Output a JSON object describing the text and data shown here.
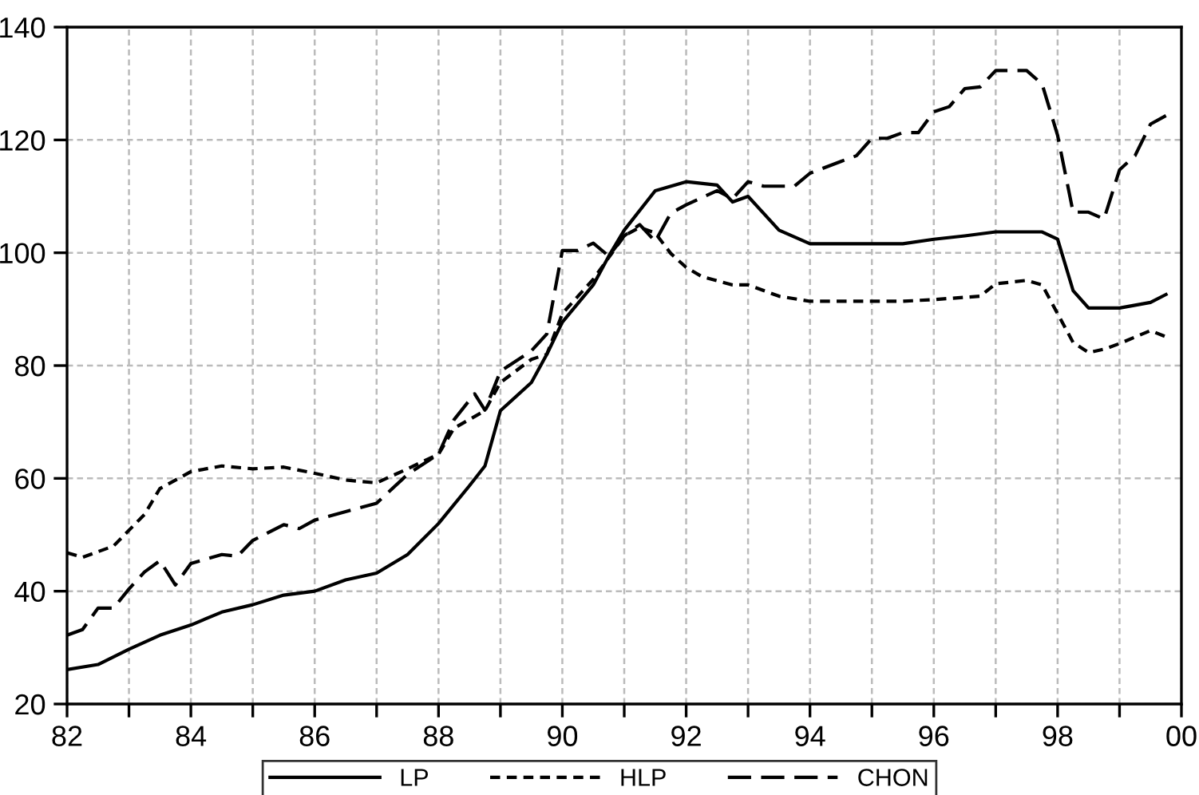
{
  "chart_data": {
    "type": "line",
    "xlim": [
      "1982",
      "2000"
    ],
    "ylim": [
      20,
      140
    ],
    "xticks": [
      {
        "value": "1982",
        "label": "82"
      },
      {
        "value": "1983",
        "label": null
      },
      {
        "value": "1984",
        "label": "84"
      },
      {
        "value": "1985",
        "label": null
      },
      {
        "value": "1986",
        "label": "86"
      },
      {
        "value": "1987",
        "label": null
      },
      {
        "value": "1988",
        "label": "88"
      },
      {
        "value": "1989",
        "label": null
      },
      {
        "value": "1990",
        "label": "90"
      },
      {
        "value": "1991",
        "label": null
      },
      {
        "value": "1992",
        "label": "92"
      },
      {
        "value": "1993",
        "label": null
      },
      {
        "value": "1994",
        "label": "94"
      },
      {
        "value": "1995",
        "label": null
      },
      {
        "value": "1996",
        "label": "96"
      },
      {
        "value": "1997",
        "label": null
      },
      {
        "value": "1998",
        "label": "98"
      },
      {
        "value": "1999",
        "label": null
      },
      {
        "value": "2000",
        "label": "00"
      }
    ],
    "yticks": [
      20,
      40,
      60,
      80,
      100,
      120,
      140
    ],
    "grid": true,
    "legend": "bottom",
    "marker": "none",
    "series": [
      {
        "name": "LP",
        "color": "#000000",
        "line_style": "solid",
        "x": [
          "1982-01",
          "1982-07",
          "1983-01",
          "1983-07",
          "1984-01",
          "1984-07",
          "1985-01",
          "1985-07",
          "1986-01",
          "1986-07",
          "1987-01",
          "1987-07",
          "1988-01",
          "1988-07",
          "1988-10",
          "1989-01",
          "1989-07",
          "1989-10",
          "1990-01",
          "1990-07",
          "1990-10",
          "1991-01",
          "1991-07",
          "1992-01",
          "1992-07",
          "1992-10",
          "1993-01",
          "1993-07",
          "1994-01",
          "1995-07",
          "1996-01",
          "1996-07",
          "1997-01",
          "1997-10",
          "1998-01",
          "1998-04",
          "1998-07",
          "1999-01",
          "1999-07",
          "1999-10"
        ],
        "values": [
          26.1,
          27,
          29.7,
          32.2,
          34,
          36.3,
          37.6,
          39.3,
          40,
          42,
          43.2,
          46.5,
          52,
          58.7,
          62.2,
          72,
          77,
          82,
          87.7,
          94.3,
          99.4,
          104,
          111,
          112.6,
          112,
          109,
          110,
          104,
          101.6,
          101.6,
          102.4,
          103,
          103.7,
          103.7,
          102.4,
          93.3,
          90.2,
          90.2,
          91.2,
          92.6
        ]
      },
      {
        "name": "HLP",
        "color": "#000000",
        "line_style": "dotted",
        "x": [
          "1982-01",
          "1982-04",
          "1982-10",
          "1983-04",
          "1983-07",
          "1984-01",
          "1984-07",
          "1985-01",
          "1985-07",
          "1986-01",
          "1986-07",
          "1987-01",
          "1987-07",
          "1988-01",
          "1988-04",
          "1988-10",
          "1989-01",
          "1989-07",
          "1989-10",
          "1990-01",
          "1990-07",
          "1991-01",
          "1991-04",
          "1991-07",
          "1991-10",
          "1992-01",
          "1992-04",
          "1992-10",
          "1993-01",
          "1993-07",
          "1994-01",
          "1995-07",
          "1996-01",
          "1996-10",
          "1997-01",
          "1997-07",
          "1997-10",
          "1998-01",
          "1998-04",
          "1998-07",
          "1998-10",
          "1999-01",
          "1999-07",
          "1999-10"
        ],
        "values": [
          46.8,
          46,
          48,
          53.6,
          58.2,
          61.2,
          62.2,
          61.7,
          62,
          60.9,
          59.7,
          59.2,
          61.7,
          64.3,
          68.9,
          72,
          77,
          81.1,
          82,
          89.2,
          95.3,
          103,
          104.5,
          103.5,
          99.9,
          97.4,
          95.8,
          94.3,
          94.3,
          92.3,
          91.4,
          91.4,
          91.7,
          92.3,
          94.5,
          95.1,
          94.3,
          89.2,
          84.1,
          82.3,
          82.9,
          83.9,
          86.2,
          85.1
        ]
      },
      {
        "name": "CHON",
        "color": "#000000",
        "line_style": "dashed",
        "x": [
          "1982-01",
          "1982-04",
          "1982-07",
          "1982-10",
          "1983-01",
          "1983-04",
          "1983-07",
          "1983-10",
          "1984-01",
          "1984-07",
          "1984-10",
          "1985-01",
          "1985-07",
          "1985-10",
          "1986-01",
          "1986-07",
          "1987-01",
          "1987-07",
          "1988-01",
          "1988-04",
          "1988-08",
          "1988-10",
          "1989-01",
          "1989-07",
          "1989-10",
          "1990-01",
          "1990-04",
          "1990-07",
          "1990-10",
          "1991-01",
          "1991-04",
          "1991-07",
          "1991-10",
          "1992-01",
          "1992-07",
          "1992-10",
          "1993-01",
          "1993-04",
          "1993-10",
          "1994-01",
          "1994-07",
          "1994-10",
          "1995-01",
          "1995-04",
          "1995-07",
          "1995-10",
          "1996-01",
          "1996-04",
          "1996-07",
          "1996-10",
          "1997-01",
          "1997-07",
          "1997-10",
          "1998-01",
          "1998-04",
          "1998-07",
          "1998-10",
          "1999-01",
          "1999-04",
          "1999-07",
          "1999-10"
        ],
        "values": [
          32.2,
          33.2,
          37,
          37,
          40.4,
          43.4,
          45.4,
          41.1,
          44.9,
          46.5,
          46.2,
          49,
          51.8,
          51.1,
          52.6,
          54.1,
          55.6,
          60.7,
          64.3,
          70.4,
          75,
          72.1,
          79,
          82.6,
          85.6,
          100.4,
          100.4,
          101.7,
          99.4,
          103,
          105,
          102,
          107,
          108.5,
          111,
          109.6,
          112.6,
          111.8,
          111.8,
          114.1,
          116.2,
          117.2,
          120.3,
          120.3,
          121.3,
          121.3,
          125,
          125.9,
          129.1,
          129.4,
          132.3,
          132.3,
          129.9,
          120.8,
          107.2,
          107.2,
          106,
          114.7,
          117.2,
          122.8,
          124.3
        ]
      }
    ]
  }
}
